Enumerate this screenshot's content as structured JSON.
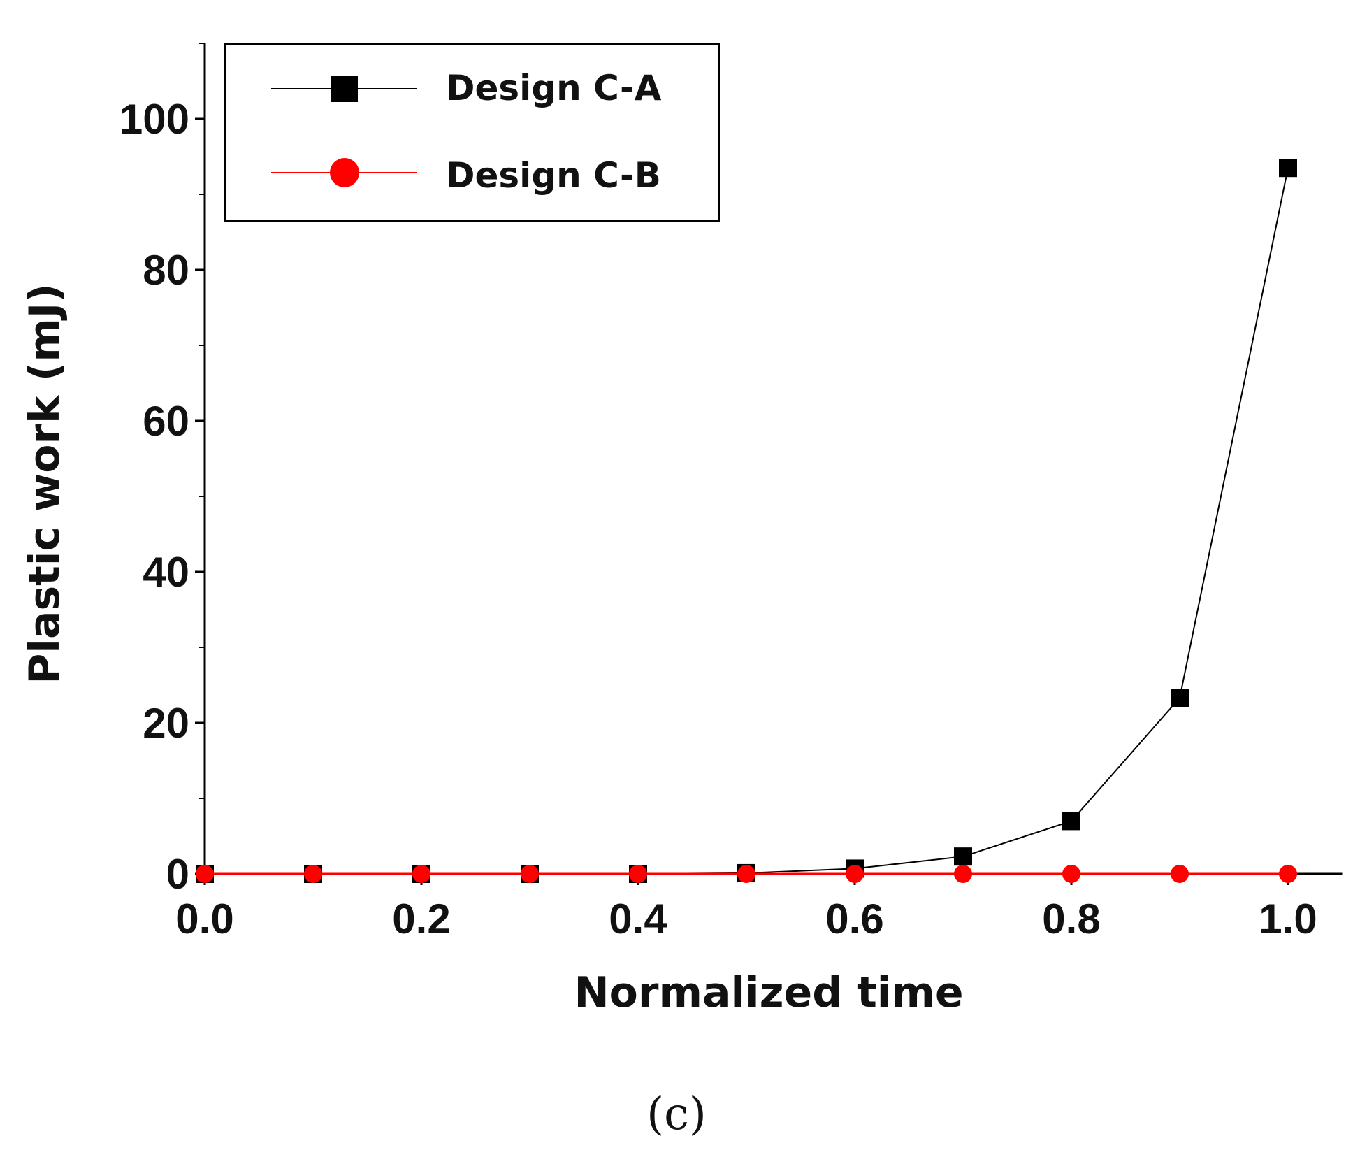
{
  "chart_data": {
    "type": "line",
    "xlabel": "Normalized time",
    "ylabel": "Plastic work (mJ)",
    "xlim": [
      0.0,
      1.05
    ],
    "ylim": [
      0,
      110
    ],
    "x_ticks": [
      "0.0",
      "0.2",
      "0.4",
      "0.6",
      "0.8",
      "1.0"
    ],
    "x_tick_values": [
      0.0,
      0.2,
      0.4,
      0.6,
      0.8,
      1.0
    ],
    "y_ticks": [
      "0",
      "20",
      "40",
      "60",
      "80",
      "100"
    ],
    "y_tick_values": [
      0,
      20,
      40,
      60,
      80,
      100
    ],
    "grid": false,
    "legend_position": "top-left",
    "x": [
      0.0,
      0.1,
      0.2,
      0.3,
      0.4,
      0.5,
      0.6,
      0.7,
      0.8,
      0.9,
      1.0
    ],
    "series": [
      {
        "name": "Design C-A",
        "color": "#000000",
        "marker": "square",
        "values": [
          0,
          0,
          0,
          0,
          0,
          0.1,
          0.7,
          2.3,
          7.0,
          23.3,
          93.5
        ]
      },
      {
        "name": "Design C-B",
        "color": "#ff0000",
        "marker": "circle",
        "values": [
          0,
          0,
          0,
          0,
          0,
          0,
          0,
          0,
          0,
          0,
          0
        ]
      }
    ]
  },
  "caption": "(c)"
}
